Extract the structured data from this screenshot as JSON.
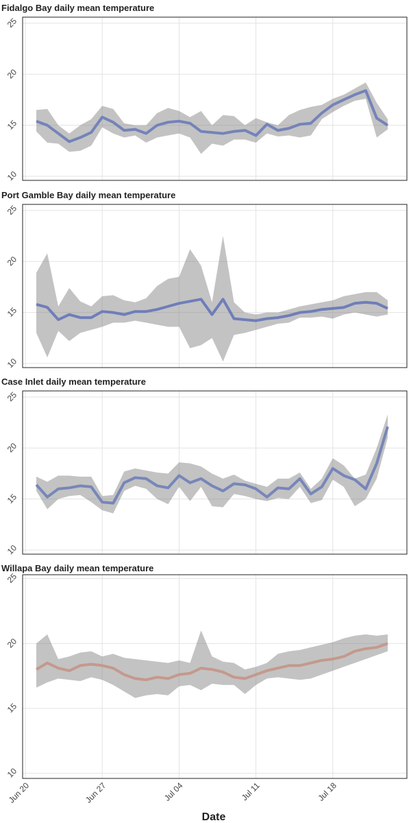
{
  "x_axis": {
    "label": "Date",
    "categories": [
      "Jun 20",
      "Jun 21",
      "Jun 22",
      "Jun 23",
      "Jun 24",
      "Jun 25",
      "Jun 26",
      "Jun 27",
      "Jun 28",
      "Jun 29",
      "Jun 30",
      "Jul 01",
      "Jul 02",
      "Jul 03",
      "Jul 04",
      "Jul 05",
      "Jul 06",
      "Jul 07",
      "Jul 08",
      "Jul 09",
      "Jul 10",
      "Jul 11",
      "Jul 12",
      "Jul 13",
      "Jul 14",
      "Jul 15",
      "Jul 16",
      "Jul 17",
      "Jul 18",
      "Jul 19",
      "Jul 20",
      "Jul 21",
      "Jul 22",
      "Jul 23"
    ],
    "ticks": [
      "Jun 20",
      "Jun 27",
      "Jul 04",
      "Jul 11",
      "Jul 18"
    ]
  },
  "chart_data": [
    {
      "type": "line",
      "title": "Fidalgo Bay daily mean temperature",
      "ylim": [
        9.6,
        25.6
      ],
      "yticks": [
        10,
        15,
        20,
        25
      ],
      "grid": true,
      "series": [
        {
          "color": "#7080b8",
          "values": [
            null,
            15.4,
            15.0,
            14.2,
            13.4,
            13.8,
            14.3,
            15.8,
            15.3,
            14.5,
            14.6,
            14.2,
            15.0,
            15.3,
            15.4,
            15.2,
            14.4,
            14.3,
            14.2,
            14.4,
            14.5,
            14.0,
            15.1,
            14.5,
            14.7,
            15.1,
            15.2,
            16.2,
            17.0,
            17.5,
            18.0,
            18.4,
            15.7,
            15.0
          ],
          "lower": [
            null,
            14.4,
            13.3,
            13.2,
            12.4,
            12.5,
            13.0,
            14.8,
            14.2,
            13.8,
            14.0,
            13.3,
            13.8,
            14.0,
            14.2,
            13.8,
            12.2,
            13.2,
            13.0,
            13.6,
            13.6,
            13.3,
            14.2,
            13.9,
            14.0,
            13.8,
            14.0,
            15.6,
            16.3,
            16.9,
            17.4,
            17.6,
            13.8,
            14.6
          ],
          "upper": [
            null,
            16.5,
            16.6,
            15.0,
            14.2,
            15.0,
            15.6,
            16.9,
            16.6,
            15.2,
            15.0,
            15.0,
            16.2,
            16.7,
            16.4,
            15.8,
            16.4,
            15.0,
            16.0,
            15.9,
            15.0,
            15.7,
            15.3,
            15.0,
            16.0,
            16.5,
            16.8,
            17.0,
            17.6,
            18.0,
            18.6,
            19.2,
            17.2,
            15.6
          ]
        }
      ]
    },
    {
      "type": "line",
      "title": "Port Gamble Bay daily mean temperature",
      "ylim": [
        9.6,
        25.6
      ],
      "yticks": [
        10,
        15,
        20,
        25
      ],
      "grid": true,
      "series": [
        {
          "color": "#6a7ab8",
          "values": [
            null,
            15.8,
            15.5,
            14.3,
            14.8,
            14.5,
            14.5,
            15.1,
            15.0,
            14.8,
            15.1,
            15.1,
            15.3,
            15.6,
            15.9,
            16.1,
            16.3,
            14.8,
            16.3,
            14.4,
            14.3,
            14.2,
            14.4,
            14.5,
            14.7,
            15.0,
            15.1,
            15.3,
            15.4,
            15.5,
            15.9,
            16.0,
            15.9,
            15.4
          ],
          "lower": [
            null,
            13.0,
            10.6,
            13.2,
            12.2,
            13.0,
            13.3,
            13.6,
            14.0,
            14.0,
            14.2,
            14.0,
            13.8,
            13.6,
            13.6,
            11.5,
            11.8,
            12.5,
            10.2,
            12.8,
            13.0,
            13.3,
            13.6,
            13.9,
            14.0,
            14.5,
            14.5,
            14.6,
            14.4,
            14.8,
            15.0,
            14.8,
            14.6,
            14.8
          ],
          "upper": [
            null,
            18.9,
            20.8,
            15.6,
            17.4,
            16.1,
            15.6,
            16.6,
            16.7,
            16.2,
            16.0,
            16.4,
            17.6,
            18.3,
            18.5,
            21.2,
            19.6,
            16.0,
            22.5,
            16.0,
            15.0,
            14.8,
            15.0,
            15.0,
            15.3,
            15.6,
            15.8,
            16.0,
            16.2,
            16.6,
            16.8,
            17.0,
            17.0,
            16.2
          ]
        }
      ]
    },
    {
      "type": "line",
      "title": "Case Inlet daily mean temperature",
      "ylim": [
        9.6,
        25.6
      ],
      "yticks": [
        10,
        15,
        20,
        25
      ],
      "grid": true,
      "series": [
        {
          "color": "#7383b8",
          "values": [
            null,
            16.4,
            15.2,
            16.0,
            16.1,
            16.3,
            16.2,
            14.7,
            14.6,
            16.6,
            17.1,
            17.0,
            16.3,
            16.1,
            17.3,
            16.6,
            17.0,
            16.3,
            15.8,
            16.5,
            16.4,
            16.0,
            15.2,
            16.1,
            16.0,
            17.0,
            15.5,
            16.2,
            18.0,
            17.3,
            16.9,
            16.0,
            18.5,
            22.1
          ],
          "lower": [
            null,
            15.8,
            14.0,
            15.0,
            15.3,
            15.4,
            14.7,
            13.9,
            13.6,
            15.8,
            16.3,
            16.0,
            15.0,
            14.5,
            16.2,
            14.8,
            16.2,
            14.3,
            14.2,
            15.5,
            15.3,
            15.0,
            14.8,
            15.1,
            15.0,
            16.2,
            14.6,
            14.9,
            16.9,
            16.2,
            14.3,
            15.0,
            17.0,
            21.0
          ],
          "upper": [
            null,
            17.2,
            16.7,
            17.3,
            17.3,
            17.2,
            17.2,
            15.3,
            15.4,
            17.7,
            18.0,
            17.8,
            17.6,
            17.5,
            18.6,
            18.5,
            18.2,
            17.5,
            17.0,
            17.4,
            16.8,
            16.5,
            16.2,
            17.0,
            17.0,
            17.6,
            16.0,
            17.0,
            19.0,
            18.3,
            17.0,
            17.4,
            20.0,
            23.3
          ]
        }
      ]
    },
    {
      "type": "line",
      "title": "Willapa Bay daily mean temperature",
      "ylim": [
        9.6,
        25.3
      ],
      "yticks": [
        10,
        15,
        20,
        25
      ],
      "grid": true,
      "series": [
        {
          "color": "#c4978a",
          "values": [
            null,
            18.0,
            18.5,
            18.1,
            17.9,
            18.3,
            18.4,
            18.3,
            18.1,
            17.6,
            17.3,
            17.2,
            17.4,
            17.3,
            17.6,
            17.7,
            18.1,
            18.0,
            17.8,
            17.4,
            17.3,
            17.6,
            17.9,
            18.1,
            18.3,
            18.3,
            18.5,
            18.7,
            18.8,
            19.0,
            19.4,
            19.6,
            19.7,
            20.0
          ],
          "lower": [
            null,
            16.6,
            17.0,
            17.3,
            17.2,
            17.1,
            17.4,
            17.2,
            16.8,
            16.3,
            15.8,
            16.0,
            16.1,
            16.0,
            16.7,
            16.8,
            16.4,
            16.9,
            16.8,
            16.8,
            16.1,
            16.8,
            17.3,
            17.4,
            17.3,
            17.2,
            17.3,
            17.6,
            17.9,
            18.2,
            18.5,
            18.8,
            19.1,
            19.4
          ],
          "upper": [
            null,
            20.0,
            20.7,
            18.8,
            19.0,
            19.3,
            19.4,
            19.0,
            19.2,
            18.9,
            18.8,
            18.7,
            18.6,
            18.5,
            18.7,
            18.5,
            21.0,
            19.0,
            18.6,
            18.5,
            18.0,
            18.2,
            18.5,
            19.2,
            19.4,
            19.5,
            19.7,
            19.9,
            20.1,
            20.4,
            20.6,
            20.7,
            20.6,
            20.7
          ]
        }
      ]
    }
  ]
}
